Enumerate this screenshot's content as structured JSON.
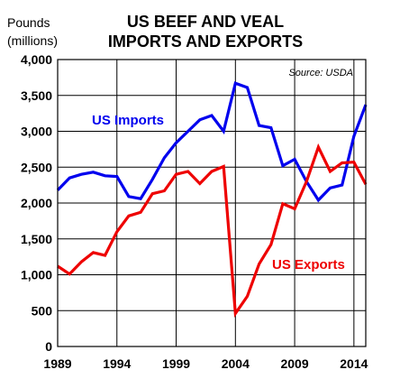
{
  "chart_data": {
    "type": "line",
    "title_lines": [
      "US BEEF AND VEAL",
      "IMPORTS AND EXPORTS"
    ],
    "ylabel_lines": [
      "Pounds",
      "(millions)"
    ],
    "source": "Source:  USDA",
    "x": [
      1989,
      1990,
      1991,
      1992,
      1993,
      1994,
      1995,
      1996,
      1997,
      1998,
      1999,
      2000,
      2001,
      2002,
      2003,
      2004,
      2005,
      2006,
      2007,
      2008,
      2009,
      2010,
      2011,
      2012,
      2013,
      2014,
      2015
    ],
    "xlim": [
      1989,
      2015
    ],
    "xticks": [
      1989,
      1994,
      1999,
      2004,
      2009,
      2014
    ],
    "ylim": [
      0,
      4000
    ],
    "yticks": [
      0,
      500,
      1000,
      1500,
      2000,
      2500,
      3000,
      3500,
      4000
    ],
    "ytick_labels": [
      "0",
      "500",
      "1,000",
      "1,500",
      "2,000",
      "2,500",
      "3,000",
      "3,500",
      "4,000"
    ],
    "grid": true,
    "series": [
      {
        "name": "US Imports",
        "color": "#0000ee",
        "values": [
          2180,
          2350,
          2400,
          2430,
          2380,
          2370,
          2090,
          2060,
          2330,
          2630,
          2840,
          3000,
          3160,
          3220,
          3000,
          3670,
          3610,
          3080,
          3050,
          2520,
          2610,
          2300,
          2040,
          2210,
          2250,
          2930,
          3370
        ]
      },
      {
        "name": "US Exports",
        "color": "#ee0000",
        "values": [
          1120,
          1010,
          1180,
          1310,
          1270,
          1600,
          1820,
          1870,
          2130,
          2170,
          2400,
          2440,
          2270,
          2440,
          2510,
          460,
          700,
          1150,
          1420,
          1990,
          1920,
          2300,
          2780,
          2440,
          2560,
          2570,
          2260
        ]
      }
    ]
  }
}
